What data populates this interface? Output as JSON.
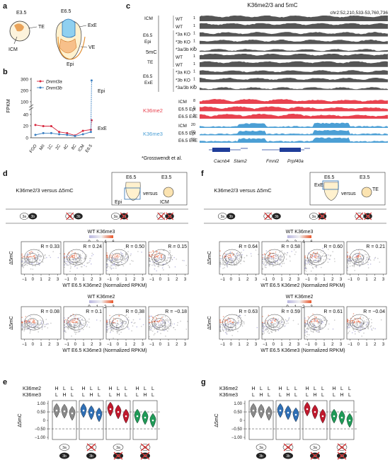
{
  "panel_letters": {
    "a": "a",
    "b": "b",
    "c": "c",
    "d": "d",
    "e": "e",
    "f": "f",
    "g": "g"
  },
  "panel_a": {
    "e35": "E3.5",
    "e65": "E6.5",
    "te": "TE",
    "icm": "ICM",
    "exe": "ExE",
    "ve": "VE",
    "epi": "Epi"
  },
  "panel_b": {
    "ylabel": "FPKM",
    "yticks": [
      "0",
      "20",
      "40",
      "100",
      "200",
      "300"
    ],
    "categories": [
      "FGO",
      "MII",
      "1C",
      "2C",
      "4C",
      "8C",
      "ICM",
      "E6.5"
    ],
    "legend": [
      "Dnmt3a",
      "Dnmt3b"
    ],
    "epi": "Epi",
    "exe": "ExE",
    "colors": {
      "dnmt3a": "#d7263d",
      "dnmt3b": "#3a7fc1"
    }
  },
  "panel_c": {
    "title": "K36me2/3 and 5mC",
    "coords": "chr2:52,210,533-53,760,736",
    "five_mc": "5mC",
    "group_icm": "ICM",
    "group_epi": "E6.5 Epi",
    "group_te": "TE",
    "group_exe": "E6.5 ExE",
    "mc_tracks": [
      {
        "label": "WT",
        "scale": "1"
      },
      {
        "label": "WT",
        "scale": "1"
      },
      {
        "label": "*3a KO",
        "scale": "1"
      },
      {
        "label": "*3b KO",
        "scale": "1"
      },
      {
        "label": "*3a/3b KO",
        "scale": "1"
      },
      {
        "label": "WT",
        "scale": "1"
      },
      {
        "label": "WT",
        "scale": "1"
      },
      {
        "label": "*3a KO",
        "scale": "1"
      },
      {
        "label": "*3b KO",
        "scale": "1"
      },
      {
        "label": "*3a/3b KO",
        "scale": "1"
      }
    ],
    "k36me2_label": "K36me2",
    "k36me2_tracks": [
      {
        "label": "ICM",
        "scale": "8"
      },
      {
        "label": "E6.5 Epi",
        "scale": "5"
      },
      {
        "label": "E6.5 ExE",
        "scale": "5"
      }
    ],
    "k36me3_label": "K36me3",
    "k36me3_tracks": [
      {
        "label": "ICM",
        "scale": "20"
      },
      {
        "label": "E6.5 Epi",
        "scale": "20"
      },
      {
        "label": "E6.5 ExE",
        "scale": "20"
      }
    ],
    "genes": [
      "Cacnb4",
      "Stam2",
      "Fmnl2",
      "Prpf40a"
    ],
    "footnote": "*Grosswendt et al.",
    "colors": {
      "mc": "#555555",
      "k36me2": "#e8424f",
      "k36me3": "#4b9fd5"
    }
  },
  "panel_d": {
    "title": "K36me2/3 versus Δ5mC",
    "schema": {
      "e65": "E6.5",
      "e35": "E3.5",
      "versus": "versus",
      "epi": "Epi",
      "icm": "ICM"
    },
    "genotypes": [
      [
        "3a",
        "3b"
      ],
      [
        "3a",
        "3b"
      ],
      [
        "3a",
        "3b"
      ],
      [
        "3a",
        "3b"
      ]
    ],
    "row1": {
      "cbar_title": "WT K36me3",
      "cbar_ticks": [
        "0",
        "2",
        "4",
        "6"
      ],
      "r_values": [
        "R = 0.33",
        "R = 0.24",
        "R = 0.50",
        "R = 0.15"
      ],
      "xlabel": "WT E6.5 K36me2 (Normalized RPKM)",
      "ylabel": "Δ5mC",
      "xticks": [
        "−1",
        "0",
        "1",
        "2",
        "3"
      ]
    },
    "row2": {
      "cbar_title": "WT K36me2",
      "cbar_ticks": [
        "0",
        "1",
        "2",
        "3"
      ],
      "r_values": [
        "R = 0.08",
        "R = 0.1",
        "R = 0.38",
        "R = −0.18"
      ],
      "xlabel": "WT E6.5 K36me3 (Normalized RPKM)",
      "ylabel": "Δ5mC",
      "xticks": [
        "−1",
        "0",
        "1",
        "2",
        "3"
      ]
    }
  },
  "panel_f": {
    "title": "K36me2/3 versus Δ5mC",
    "schema": {
      "e65": "E6.5",
      "e35": "E3.5",
      "versus": "versus",
      "exe": "ExE",
      "te": "TE"
    },
    "row1": {
      "cbar_title": "WT K36me3",
      "cbar_ticks": [
        "0",
        "2",
        "4",
        "6"
      ],
      "r_values": [
        "R = 0.64",
        "R = 0.58",
        "R = 0.60",
        "R = 0.21"
      ],
      "xlabel": "WT E6.5 K36me2 (Normalized RPKM)",
      "ylabel": "Δ5mC",
      "xticks": [
        "−1",
        "0",
        "1",
        "2",
        "3"
      ]
    },
    "row2": {
      "cbar_title": "WT K36me2",
      "cbar_ticks": [
        "0",
        "1",
        "2",
        "3"
      ],
      "r_values": [
        "R = 0.63",
        "R = 0.59",
        "R = 0.61",
        "R = −0.04"
      ],
      "xlabel": "WT E6.5 K36me3 (Normalized RPKM)",
      "ylabel": "Δ5mC",
      "xticks": [
        "−1",
        "0",
        "1",
        "2",
        "3"
      ]
    }
  },
  "panel_e": {
    "row_k36me2": "K36me2",
    "row_k36me3": "K36me3",
    "k36me2_levels": [
      "H",
      "L",
      "L"
    ],
    "k36me3_levels": [
      "L",
      "H",
      "L"
    ],
    "ylabel": "Δ5mC",
    "yticks": [
      "1.00",
      "0.50",
      "0",
      "−0.50",
      "−1.00"
    ],
    "violin_colors": [
      "#8a8a8a",
      "#2f6fb5",
      "#c0182c",
      "#1f9a57"
    ]
  },
  "panel_g": {
    "row_k36me2": "K36me2",
    "row_k36me3": "K36me3",
    "ylabel": "Δ5mC",
    "yticks": [
      "1.00",
      "0.50",
      "0",
      "−0.50",
      "−1.00"
    ]
  },
  "chart_data": [
    {
      "type": "line",
      "title": "",
      "xlabel": "",
      "ylabel": "FPKM",
      "categories": [
        "FGO",
        "MII",
        "1C",
        "2C",
        "4C",
        "8C",
        "ICM",
        "E6.5 ExE",
        "E6.5 Epi"
      ],
      "series": [
        {
          "name": "Dnmt3a",
          "values": [
            22,
            20,
            20,
            10,
            8,
            4,
            12,
            14,
            30
          ]
        },
        {
          "name": "Dnmt3b",
          "values": [
            5,
            8,
            8,
            6,
            5,
            3,
            6,
            10,
            290
          ]
        }
      ]
    },
    {
      "type": "scatter",
      "title": "",
      "xlabel": "WT E6.5 K36me2 (Normalized RPKM)",
      "ylabel": "Δ5mC",
      "r": [
        0.33,
        0.24,
        0.5,
        0.15
      ]
    },
    {
      "type": "scatter",
      "title": "",
      "xlabel": "WT E6.5 K36me3 (Normalized RPKM)",
      "ylabel": "Δ5mC",
      "r": [
        0.08,
        0.1,
        0.38,
        -0.18
      ]
    },
    {
      "type": "scatter",
      "title": "",
      "xlabel": "WT E6.5 K36me2 (Normalized RPKM)",
      "ylabel": "Δ5mC",
      "r": [
        0.64,
        0.58,
        0.6,
        0.21
      ]
    },
    {
      "type": "scatter",
      "title": "",
      "xlabel": "WT E6.5 K36me3 (Normalized RPKM)",
      "ylabel": "Δ5mC",
      "r": [
        0.63,
        0.59,
        0.61,
        -0.04
      ]
    }
  ]
}
